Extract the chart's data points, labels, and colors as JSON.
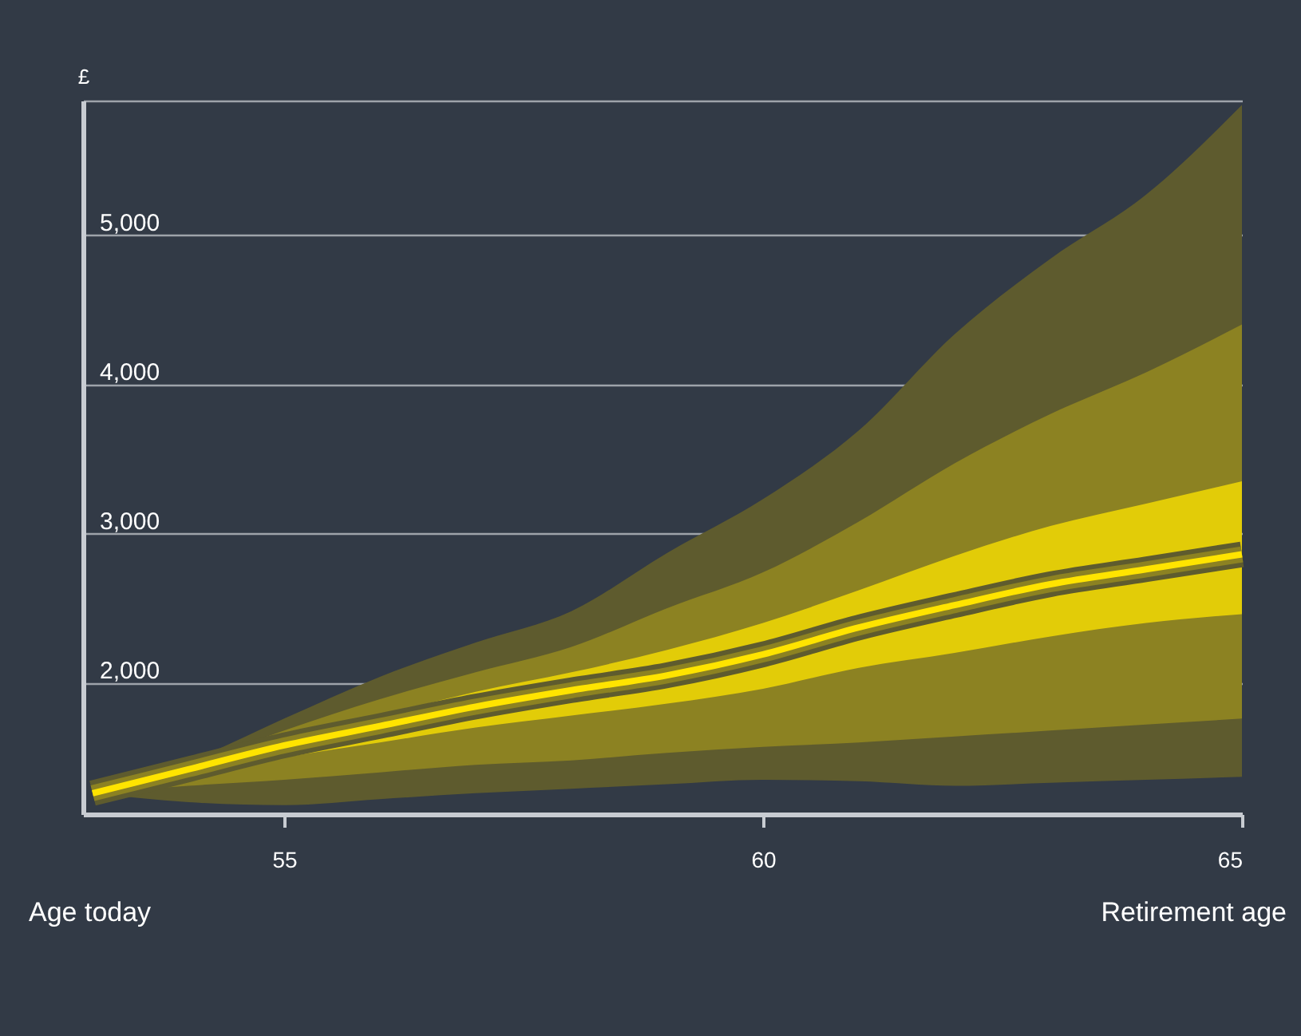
{
  "chart_data": {
    "type": "line",
    "ylabel": "£",
    "x": [
      53,
      54,
      55,
      56,
      57,
      58,
      59,
      60,
      61,
      62,
      63,
      64,
      65
    ],
    "xlim": [
      52.9,
      65
    ],
    "xticks": [
      55,
      60,
      65
    ],
    "ylim": [
      1120,
      5900
    ],
    "yticks": [
      {
        "value": 2000,
        "label": "2,000"
      },
      {
        "value": 3000,
        "label": "3,000"
      },
      {
        "value": 4000,
        "label": "4,000"
      },
      {
        "value": 5000,
        "label": "5,000"
      },
      {
        "value": 5900,
        "label": null
      }
    ],
    "grid": "y",
    "series": [
      {
        "color": "#5e5b2e",
        "values": [
          1260,
          1420,
          1580,
          1710,
          1840,
          1950,
          2050,
          2190,
          2370,
          2520,
          2660,
          2760,
          2860
        ],
        "lower": [
          1260,
          1200,
          1180,
          1220,
          1260,
          1290,
          1320,
          1350,
          1340,
          1310,
          1330,
          1350,
          1370
        ],
        "upper": [
          1260,
          1470,
          1760,
          2040,
          2270,
          2480,
          2870,
          3230,
          3690,
          4335,
          4840,
          5270,
          5870
        ]
      },
      {
        "color": "#8c8222",
        "values": [
          1260,
          1420,
          1580,
          1710,
          1840,
          1950,
          2050,
          2190,
          2370,
          2520,
          2660,
          2760,
          2860
        ],
        "lower": [
          1260,
          1310,
          1350,
          1400,
          1450,
          1480,
          1530,
          1570,
          1600,
          1640,
          1680,
          1720,
          1760
        ],
        "upper": [
          1260,
          1450,
          1680,
          1890,
          2070,
          2240,
          2500,
          2740,
          3080,
          3470,
          3800,
          4080,
          4400
        ]
      },
      {
        "color": "#ffe400",
        "values": [
          1260,
          1420,
          1580,
          1710,
          1840,
          1950,
          2050,
          2190,
          2370,
          2520,
          2660,
          2760,
          2860
        ],
        "lower": [
          1260,
          1380,
          1500,
          1600,
          1700,
          1780,
          1860,
          1960,
          2100,
          2200,
          2310,
          2400,
          2460
        ],
        "upper": [
          1260,
          1440,
          1620,
          1780,
          1940,
          2070,
          2220,
          2400,
          2620,
          2850,
          3050,
          3200,
          3350
        ]
      }
    ],
    "annotations": [
      "Age today",
      "Retirement age"
    ]
  }
}
